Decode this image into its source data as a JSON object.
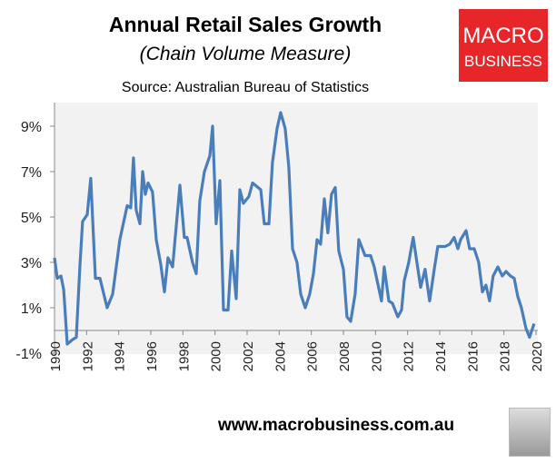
{
  "chart_data": {
    "type": "line",
    "title": "Annual Retail Sales Growth",
    "subtitle": "(Chain Volume Measure)",
    "source": "Source: Australian Bureau of Statistics",
    "xlabel": "",
    "ylabel": "",
    "xlim": [
      1990,
      2020
    ],
    "ylim": [
      -1,
      10
    ],
    "yticks": [
      -1,
      1,
      3,
      5,
      7,
      9
    ],
    "ytick_labels": [
      "-1%",
      "1%",
      "3%",
      "5%",
      "7%",
      "9%"
    ],
    "xticks": [
      1990,
      1992,
      1994,
      1996,
      1998,
      2000,
      2002,
      2004,
      2006,
      2008,
      2010,
      2012,
      2014,
      2016,
      2018,
      2020
    ],
    "xtick_labels": [
      "1990",
      "1992",
      "1994",
      "1996",
      "1998",
      "2000",
      "2002",
      "2004",
      "2006",
      "2008",
      "2010",
      "2012",
      "2014",
      "2016",
      "2018",
      "2020"
    ],
    "series": [
      {
        "name": "Annual retail sales growth",
        "color": "#4a7ebb",
        "x": [
          1990.0,
          1990.17,
          1990.4,
          1990.57,
          1990.79,
          1991.13,
          1991.36,
          1991.58,
          1991.75,
          1992.04,
          1992.26,
          1992.55,
          1992.83,
          1993.28,
          1993.62,
          1994.07,
          1994.53,
          1994.75,
          1994.92,
          1995.09,
          1995.32,
          1995.49,
          1995.66,
          1995.83,
          1996.11,
          1996.34,
          1996.62,
          1996.85,
          1997.07,
          1997.36,
          1997.81,
          1998.09,
          1998.26,
          1998.6,
          1998.83,
          1999.05,
          1999.34,
          1999.68,
          1999.85,
          2000.07,
          2000.3,
          2000.53,
          2000.81,
          2001.04,
          2001.32,
          2001.55,
          2001.77,
          2002.11,
          2002.34,
          2002.85,
          2003.07,
          2003.36,
          2003.58,
          2003.87,
          2004.09,
          2004.37,
          2004.6,
          2004.83,
          2005.11,
          2005.34,
          2005.62,
          2005.9,
          2006.13,
          2006.36,
          2006.58,
          2006.81,
          2007.03,
          2007.26,
          2007.49,
          2007.71,
          2008.0,
          2008.22,
          2008.45,
          2008.73,
          2008.96,
          2009.35,
          2009.69,
          2009.92,
          2010.37,
          2010.54,
          2010.83,
          2011.05,
          2011.39,
          2011.62,
          2011.79,
          2012.07,
          2012.35,
          2012.81,
          2013.09,
          2013.37,
          2013.66,
          2013.88,
          2014.34,
          2014.62,
          2014.9,
          2015.13,
          2015.3,
          2015.64,
          2015.86,
          2016.15,
          2016.43,
          2016.66,
          2016.88,
          2017.11,
          2017.33,
          2017.62,
          2017.9,
          2018.13,
          2018.41,
          2018.64,
          2018.86,
          2019.09,
          2019.37,
          2019.6,
          2019.88
        ],
        "y": [
          3.2,
          2.3,
          2.4,
          1.8,
          -0.6,
          -0.4,
          -0.3,
          2.8,
          4.8,
          5.1,
          6.7,
          2.3,
          2.3,
          1.0,
          1.6,
          4.0,
          5.5,
          5.4,
          7.6,
          5.3,
          4.7,
          7.0,
          6.0,
          6.5,
          6.1,
          4.0,
          2.9,
          1.7,
          3.2,
          2.8,
          6.4,
          4.1,
          4.1,
          3.0,
          2.5,
          5.7,
          7.0,
          7.7,
          9.0,
          4.7,
          6.6,
          0.9,
          0.9,
          3.5,
          1.4,
          6.2,
          5.6,
          5.9,
          6.5,
          6.2,
          4.7,
          4.7,
          7.4,
          8.9,
          9.6,
          8.9,
          7.2,
          3.6,
          3.0,
          1.6,
          1.0,
          1.6,
          2.5,
          4.0,
          3.8,
          5.8,
          4.3,
          6.0,
          6.3,
          3.5,
          2.7,
          0.6,
          0.4,
          1.6,
          4.0,
          3.3,
          3.3,
          2.8,
          1.3,
          2.8,
          1.3,
          1.2,
          0.6,
          0.9,
          2.2,
          3.0,
          4.1,
          1.9,
          2.7,
          1.3,
          2.7,
          3.7,
          3.7,
          3.8,
          4.1,
          3.6,
          4.0,
          4.4,
          3.6,
          3.6,
          3.0,
          1.7,
          2.0,
          1.3,
          2.4,
          2.8,
          2.4,
          2.6,
          2.4,
          2.3,
          1.5,
          1.0,
          0.1,
          -0.3,
          0.3
        ]
      }
    ],
    "grid": false,
    "legend": "none"
  },
  "logo": {
    "line1": "MACRO",
    "line2": "BUSINESS"
  },
  "footer": {
    "url": "www.macrobusiness.com.au"
  }
}
